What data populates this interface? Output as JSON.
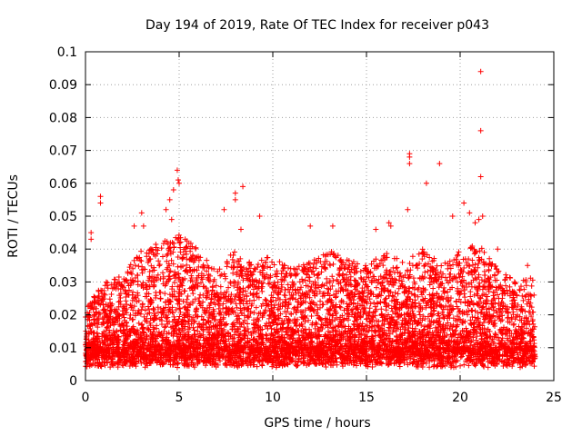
{
  "chart_data": {
    "type": "scatter",
    "title": "Day 194 of 2019, Rate Of TEC Index for receiver p043",
    "xlabel": "GPS time / hours",
    "ylabel": "ROTI / TECUs",
    "xlim": [
      0,
      25
    ],
    "ylim": [
      0,
      0.1
    ],
    "x_ticks": [
      "0",
      "5",
      "10",
      "15",
      "20",
      "25"
    ],
    "y_ticks": [
      "0",
      "0.01",
      "0.02",
      "0.03",
      "0.04",
      "0.05",
      "0.06",
      "0.07",
      "0.08",
      "0.09",
      "0.1"
    ],
    "grid": true,
    "marker": "+",
    "marker_color": "#ff0000",
    "series": [
      {
        "name": "ROTI",
        "time_range_hours": [
          0,
          24
        ],
        "approx_baseline_range": [
          0.003,
          0.03
        ],
        "outliers": [
          {
            "x": 0.8,
            "y": 0.056
          },
          {
            "x": 0.8,
            "y": 0.054
          },
          {
            "x": 0.3,
            "y": 0.045
          },
          {
            "x": 0.3,
            "y": 0.043
          },
          {
            "x": 2.6,
            "y": 0.047
          },
          {
            "x": 3.0,
            "y": 0.051
          },
          {
            "x": 3.1,
            "y": 0.047
          },
          {
            "x": 4.3,
            "y": 0.052
          },
          {
            "x": 4.5,
            "y": 0.055
          },
          {
            "x": 4.7,
            "y": 0.058
          },
          {
            "x": 4.9,
            "y": 0.064
          },
          {
            "x": 4.95,
            "y": 0.061
          },
          {
            "x": 5.0,
            "y": 0.06
          },
          {
            "x": 4.6,
            "y": 0.049
          },
          {
            "x": 7.4,
            "y": 0.052
          },
          {
            "x": 8.0,
            "y": 0.057
          },
          {
            "x": 8.0,
            "y": 0.055
          },
          {
            "x": 8.4,
            "y": 0.059
          },
          {
            "x": 8.3,
            "y": 0.046
          },
          {
            "x": 9.3,
            "y": 0.05
          },
          {
            "x": 12.0,
            "y": 0.047
          },
          {
            "x": 13.2,
            "y": 0.047
          },
          {
            "x": 15.5,
            "y": 0.046
          },
          {
            "x": 16.2,
            "y": 0.048
          },
          {
            "x": 16.3,
            "y": 0.047
          },
          {
            "x": 17.3,
            "y": 0.069
          },
          {
            "x": 17.3,
            "y": 0.068
          },
          {
            "x": 17.3,
            "y": 0.066
          },
          {
            "x": 17.2,
            "y": 0.052
          },
          {
            "x": 18.2,
            "y": 0.06
          },
          {
            "x": 18.9,
            "y": 0.066
          },
          {
            "x": 19.6,
            "y": 0.05
          },
          {
            "x": 20.2,
            "y": 0.054
          },
          {
            "x": 20.5,
            "y": 0.051
          },
          {
            "x": 20.8,
            "y": 0.048
          },
          {
            "x": 21.1,
            "y": 0.094
          },
          {
            "x": 21.1,
            "y": 0.076
          },
          {
            "x": 21.1,
            "y": 0.062
          },
          {
            "x": 21.2,
            "y": 0.05
          },
          {
            "x": 21.0,
            "y": 0.049
          },
          {
            "x": 22.0,
            "y": 0.04
          },
          {
            "x": 23.6,
            "y": 0.035
          }
        ]
      }
    ]
  }
}
